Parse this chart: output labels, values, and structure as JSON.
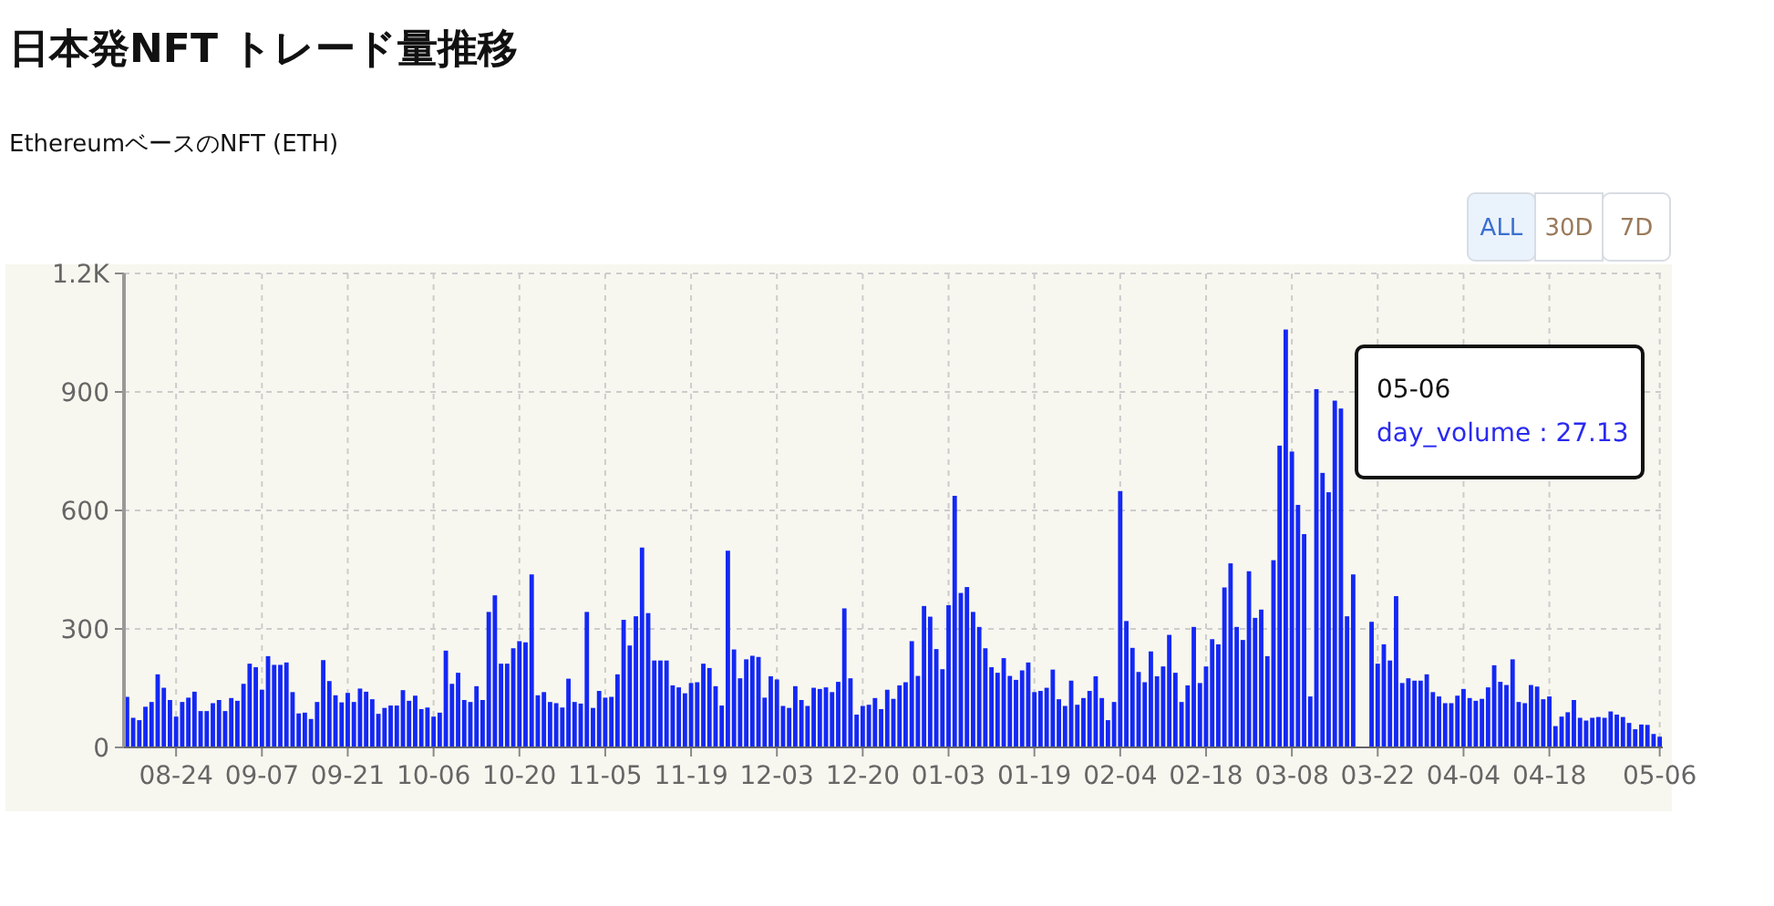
{
  "chart_data": {
    "type": "bar",
    "title": "日本発NFT トレード量推移",
    "subtitle": "EthereumベースのNFT (ETH)",
    "categories": [
      null,
      null,
      null,
      null,
      null,
      null,
      null,
      null,
      "08-24",
      null,
      null,
      null,
      null,
      null,
      null,
      null,
      null,
      null,
      null,
      null,
      null,
      null,
      "09-07",
      null,
      null,
      null,
      null,
      null,
      null,
      null,
      null,
      null,
      null,
      null,
      null,
      null,
      "09-21",
      null,
      null,
      null,
      null,
      null,
      null,
      null,
      null,
      null,
      null,
      null,
      null,
      null,
      "10-06",
      null,
      null,
      null,
      null,
      null,
      null,
      null,
      null,
      null,
      null,
      null,
      null,
      null,
      "10-20",
      null,
      null,
      null,
      null,
      null,
      null,
      null,
      null,
      null,
      null,
      null,
      null,
      null,
      "11-05",
      null,
      null,
      null,
      null,
      null,
      null,
      null,
      null,
      null,
      null,
      null,
      null,
      null,
      "11-19",
      null,
      null,
      null,
      null,
      null,
      null,
      null,
      null,
      null,
      null,
      null,
      null,
      null,
      "12-03",
      null,
      null,
      null,
      null,
      null,
      null,
      null,
      null,
      null,
      null,
      null,
      null,
      null,
      "12-20",
      null,
      null,
      null,
      null,
      null,
      null,
      null,
      null,
      null,
      null,
      null,
      null,
      null,
      "01-03",
      null,
      null,
      null,
      null,
      null,
      null,
      null,
      null,
      null,
      null,
      null,
      null,
      null,
      "01-19",
      null,
      null,
      null,
      null,
      null,
      null,
      null,
      null,
      null,
      null,
      null,
      null,
      null,
      "02-04",
      null,
      null,
      null,
      null,
      null,
      null,
      null,
      null,
      null,
      null,
      null,
      null,
      null,
      "02-18",
      null,
      null,
      null,
      null,
      null,
      null,
      null,
      null,
      null,
      null,
      null,
      null,
      null,
      "03-08",
      null,
      null,
      null,
      null,
      null,
      null,
      null,
      null,
      null,
      null,
      null,
      null,
      null,
      "03-22",
      null,
      null,
      null,
      null,
      null,
      null,
      null,
      null,
      null,
      null,
      null,
      null,
      null,
      "04-04",
      null,
      null,
      null,
      null,
      null,
      null,
      null,
      null,
      null,
      null,
      null,
      null,
      null,
      "04-18",
      null,
      null,
      null,
      null,
      null,
      null,
      null,
      null,
      null,
      null,
      null,
      null,
      null,
      null,
      null,
      null,
      null,
      "05-06"
    ],
    "values": [
      128,
      75,
      69,
      103,
      115,
      185,
      151,
      120,
      78,
      115,
      126,
      141,
      92,
      92,
      112,
      120,
      92,
      125,
      118,
      161,
      212,
      203,
      146,
      231,
      209,
      209,
      215,
      140,
      86,
      88,
      72,
      115,
      221,
      168,
      132,
      114,
      138,
      115,
      149,
      141,
      122,
      85,
      100,
      106,
      106,
      145,
      118,
      131,
      97,
      101,
      78,
      88,
      245,
      161,
      189,
      120,
      115,
      155,
      120,
      343,
      385,
      212,
      212,
      251,
      269,
      266,
      438,
      132,
      140,
      115,
      112,
      101,
      174,
      115,
      111,
      343,
      100,
      143,
      126,
      128,
      185,
      323,
      258,
      332,
      506,
      340,
      220,
      220,
      220,
      157,
      152,
      137,
      163,
      165,
      212,
      201,
      155,
      106,
      498,
      248,
      175,
      223,
      232,
      229,
      126,
      180,
      172,
      105,
      100,
      155,
      120,
      105,
      151,
      148,
      152,
      140,
      166,
      352,
      175,
      83,
      105,
      108,
      125,
      97,
      146,
      123,
      157,
      165,
      269,
      181,
      358,
      331,
      249,
      198,
      360,
      637,
      391,
      406,
      343,
      305,
      251,
      203,
      189,
      226,
      181,
      171,
      195,
      215,
      140,
      143,
      151,
      197,
      122,
      105,
      169,
      108,
      125,
      143,
      180,
      125,
      69,
      115,
      649,
      320,
      252,
      191,
      165,
      243,
      180,
      205,
      285,
      189,
      115,
      157,
      305,
      163,
      205,
      274,
      261,
      405,
      466,
      305,
      272,
      446,
      328,
      349,
      231,
      474,
      764,
      1058,
      749,
      614,
      540,
      129,
      907,
      695,
      646,
      878,
      858,
      332,
      438,
      null,
      null,
      318,
      212,
      261,
      220,
      383,
      163,
      175,
      169,
      169,
      185,
      140,
      129,
      112,
      112,
      131,
      148,
      125,
      118,
      123,
      152,
      208,
      166,
      158,
      223,
      115,
      112,
      158,
      154,
      122,
      129,
      54,
      78,
      89,
      120,
      75,
      68,
      75,
      77,
      75,
      91,
      83,
      77,
      62,
      46,
      58,
      57,
      34,
      27.13
    ],
    "color": "#1428f5",
    "ylim": [
      0,
      1200
    ],
    "yticks": [
      0,
      300,
      600,
      900,
      {
        "value": 1200,
        "label": "1.2K"
      }
    ],
    "grid": true,
    "annotations": [
      "ALL",
      "30D",
      "7D",
      "05-06\nday_volume : 27.13"
    ]
  }
}
